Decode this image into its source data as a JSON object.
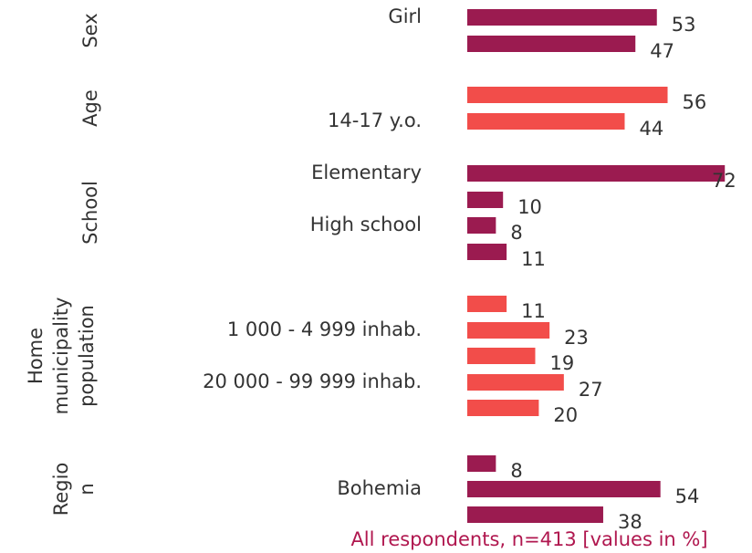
{
  "chart_data": {
    "type": "bar",
    "note": "All respondents, n=413 [values in %]",
    "xlim": [
      0,
      75
    ],
    "groups": [
      {
        "name": [
          "Sex"
        ],
        "color": "#9b1b50",
        "categories": [
          "Girl",
          null
        ],
        "values": [
          53,
          47
        ]
      },
      {
        "name": [
          "Age"
        ],
        "color": "#f24d4a",
        "categories": [
          null,
          "14-17 y.o."
        ],
        "values": [
          56,
          44
        ]
      },
      {
        "name": [
          "School"
        ],
        "color": "#9b1b50",
        "categories": [
          "Elementary",
          null,
          "High school",
          null
        ],
        "values": [
          72,
          10,
          8,
          11
        ]
      },
      {
        "name": [
          "Home",
          "municipality",
          "population"
        ],
        "color": "#f24d4a",
        "categories": [
          null,
          "1 000 - 4 999 inhab.",
          null,
          "20 000 - 99 999 inhab.",
          null
        ],
        "values": [
          11,
          23,
          19,
          27,
          20
        ]
      },
      {
        "name": [
          "Regio",
          "n"
        ],
        "color": "#9b1b50",
        "categories": [
          null,
          "Bohemia",
          null
        ],
        "values": [
          8,
          54,
          38
        ]
      }
    ]
  }
}
